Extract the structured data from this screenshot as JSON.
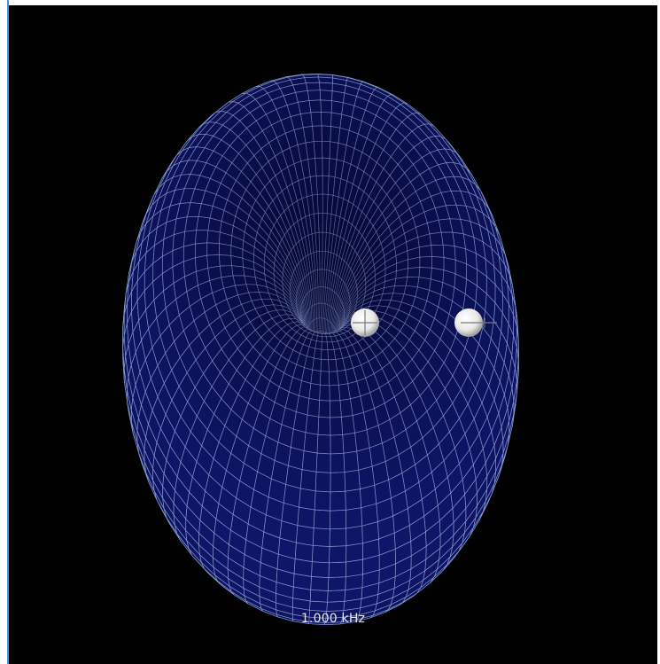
{
  "viewport": {
    "frequency_label": "1.000 kHz",
    "background_color": "#000000",
    "mesh_color": "#8fa3d6",
    "mesh_shadow_color": "#2b3b78",
    "marker_color": "#ffffff"
  },
  "markers": [
    {
      "name": "origin-marker",
      "icon": "crosshair-sphere-icon"
    },
    {
      "name": "pointer-marker",
      "icon": "pointer-sphere-icon"
    }
  ]
}
